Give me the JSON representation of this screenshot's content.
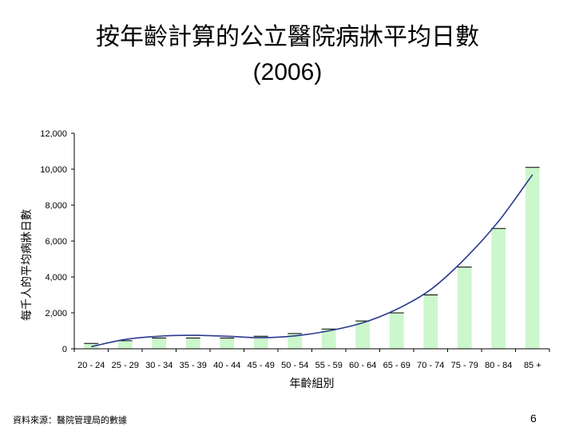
{
  "slide": {
    "title_line1": "按年齡計算的公立醫院病牀平均日數",
    "title_line2": "(2006)",
    "source": "資料來源：醫院管理局的數據",
    "page_number": "6"
  },
  "chart_data": {
    "type": "bar",
    "categories": [
      "20 - 24",
      "25 - 29",
      "30 - 34",
      "35 - 39",
      "40 - 44",
      "45 - 49",
      "50 - 54",
      "55 - 59",
      "60 - 64",
      "65 - 69",
      "70 - 74",
      "75 - 79",
      "80 - 84",
      "85 +"
    ],
    "values": [
      300,
      450,
      600,
      600,
      600,
      700,
      850,
      1100,
      1550,
      2000,
      3000,
      4550,
      6700,
      10100
    ],
    "trendline": [
      120,
      520,
      700,
      750,
      700,
      620,
      720,
      1000,
      1450,
      2200,
      3300,
      5000,
      7100,
      9700
    ],
    "xlabel": "年齡組別",
    "ylabel": "每千人的平均病牀日數",
    "ylim": [
      0,
      12000
    ],
    "yticks": [
      "0",
      "2,000",
      "4,000",
      "6,000",
      "8,000",
      "10,000",
      "12,000"
    ],
    "grid": false,
    "legend": "none",
    "colors": {
      "bar": "#ccf7cc",
      "trend": "#2b3a8f",
      "axis": "#000000"
    }
  }
}
